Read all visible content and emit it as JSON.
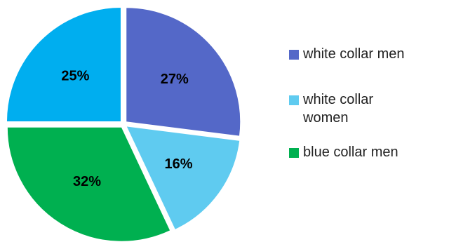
{
  "chart_data": {
    "type": "pie",
    "title": "",
    "slices": [
      {
        "label": "white collar men",
        "value": 27,
        "display": "27%",
        "color": "#5468C8"
      },
      {
        "label": "white collar women",
        "value": 16,
        "display": "16%",
        "color": "#5FCBF0"
      },
      {
        "label": "blue collar men",
        "value": 32,
        "display": "32%",
        "color": "#00B050"
      },
      {
        "label": "",
        "value": 25,
        "display": "25%",
        "color": "#00AEEF"
      }
    ],
    "legend": {
      "position": "right",
      "entries": [
        {
          "label": "white collar men",
          "color": "#5468C8"
        },
        {
          "label": "white collar women",
          "color": "#5FCBF0"
        },
        {
          "label": "blue collar men",
          "color": "#00B050"
        }
      ]
    }
  }
}
